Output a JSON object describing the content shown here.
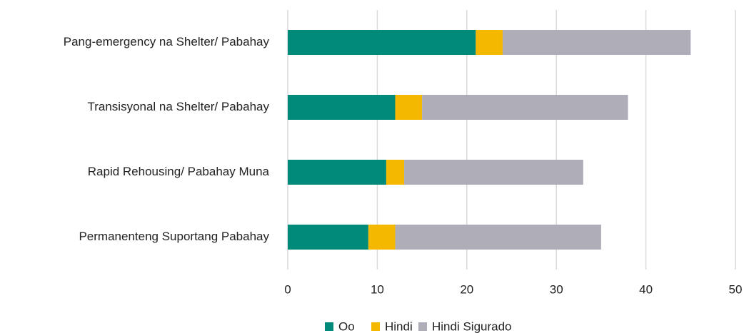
{
  "chart_data": {
    "type": "stacked-barh",
    "categories": [
      "Pang-emergency na Shelter/ Pabahay",
      "Transisyonal na Shelter/ Pabahay",
      "Rapid Rehousing/ Pabahay Muna",
      "Permanenteng Suportang Pabahay"
    ],
    "series": [
      {
        "name": "Oo",
        "color": "#008a7a",
        "values": [
          21,
          12,
          11,
          9
        ]
      },
      {
        "name": "Hindi",
        "color": "#f5b800",
        "values": [
          3,
          3,
          2,
          3
        ]
      },
      {
        "name": "Hindi Sigurado",
        "color": "#afaeb8",
        "values": [
          21,
          23,
          20,
          23
        ]
      }
    ],
    "xlim": [
      0,
      50
    ],
    "xticks": [
      0,
      10,
      20,
      30,
      40,
      50
    ],
    "grid": true,
    "legend": "bottom"
  }
}
